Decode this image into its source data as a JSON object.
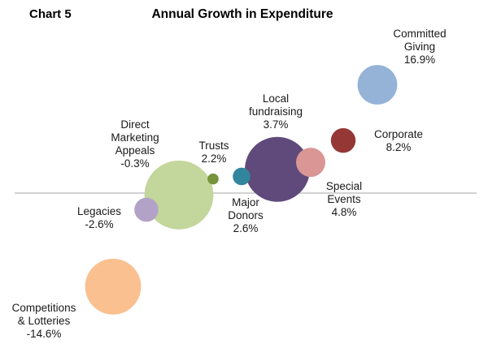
{
  "chart_number": "Chart 5",
  "chart_data": {
    "type": "bubble",
    "title": "Annual Growth in Expenditure",
    "xlabel": "",
    "ylabel": "",
    "grid": false,
    "legend": "none",
    "baseline": 0,
    "unit": "%",
    "series": [
      {
        "name": "Committed Giving",
        "label_lines": [
          "Committed",
          "Giving",
          "16.9%"
        ],
        "growth": 16.9,
        "relative_size": 0.61,
        "color": "#95b3d7"
      },
      {
        "name": "Corporate",
        "label_lines": [
          "Corporate",
          "8.2%"
        ],
        "growth": 8.2,
        "relative_size": 0.38,
        "color": "#953735"
      },
      {
        "name": "Local fundraising",
        "label_lines": [
          "Local",
          "fundraising",
          "3.7%"
        ],
        "growth": 3.7,
        "relative_size": 1.0,
        "color": "#604a7b"
      },
      {
        "name": "Special Events",
        "label_lines": [
          "Special",
          "Events",
          "4.8%"
        ],
        "growth": 4.8,
        "relative_size": 0.45,
        "color": "#d99694"
      },
      {
        "name": "Major Donors",
        "label_lines": [
          "Major",
          "Donors",
          "2.6%"
        ],
        "growth": 2.6,
        "relative_size": 0.27,
        "color": "#31859c"
      },
      {
        "name": "Trusts",
        "label_lines": [
          "Trusts",
          "2.2%"
        ],
        "growth": 2.2,
        "relative_size": 0.17,
        "color": "#77933c"
      },
      {
        "name": "Direct Marketing Appeals",
        "label_lines": [
          "Direct",
          "Marketing",
          "Appeals",
          "-0.3%"
        ],
        "growth": -0.3,
        "relative_size": 1.06,
        "color": "#c3d69b"
      },
      {
        "name": "Legacies",
        "label_lines": [
          "Legacies",
          "-2.6%"
        ],
        "growth": -2.6,
        "relative_size": 0.37,
        "color": "#b3a2c7"
      },
      {
        "name": "Competitions & Lotteries",
        "label_lines": [
          "Competitions",
          "& Lotteries",
          "-14.6%"
        ],
        "growth": -14.6,
        "relative_size": 0.86,
        "color": "#fac090"
      }
    ]
  }
}
